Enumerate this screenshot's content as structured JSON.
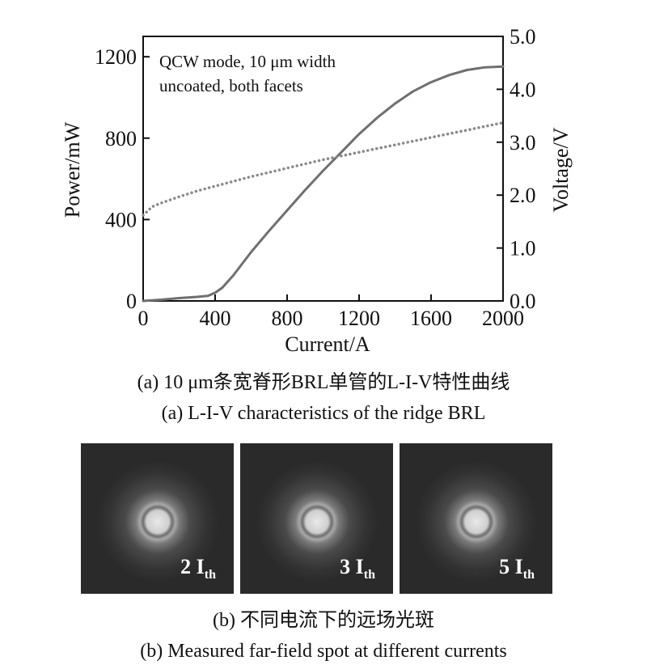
{
  "chart_data": {
    "type": "line",
    "xlabel": "Current/A",
    "ylabel_left": "Power/mW",
    "ylabel_right": "Voltage/V",
    "xlim": [
      0,
      2000
    ],
    "ylim_left": [
      0,
      1300
    ],
    "ylim_right": [
      0,
      5.0
    ],
    "x_ticks": [
      "0",
      "400",
      "800",
      "1200",
      "1600",
      "2000"
    ],
    "y_ticks_left": [
      "0",
      "400",
      "800",
      "1200"
    ],
    "y_ticks_right": [
      "0.0",
      "1.0",
      "2.0",
      "3.0",
      "4.0",
      "5.0"
    ],
    "annotation": [
      "QCW mode, 10 μm width",
      "uncoated, both facets"
    ],
    "series": [
      {
        "axis": "left",
        "style": "solid",
        "color": "#6f6f6f",
        "x": [
          0,
          100,
          200,
          300,
          360,
          400,
          440,
          500,
          600,
          700,
          800,
          900,
          1000,
          1100,
          1200,
          1300,
          1400,
          1500,
          1600,
          1700,
          1800,
          1900,
          2000
        ],
        "values": [
          0,
          6,
          14,
          20,
          25,
          40,
          65,
          125,
          240,
          345,
          445,
          545,
          640,
          730,
          820,
          900,
          970,
          1030,
          1075,
          1110,
          1135,
          1148,
          1152
        ]
      },
      {
        "axis": "right",
        "style": "dotted",
        "color": "#8a8a8a",
        "x": [
          0,
          50,
          100,
          200,
          300,
          400,
          500,
          600,
          700,
          800,
          900,
          1000,
          1100,
          1200,
          1300,
          1400,
          1500,
          1600,
          1700,
          1800,
          1900,
          2000
        ],
        "values": [
          1.62,
          1.78,
          1.85,
          1.97,
          2.08,
          2.17,
          2.26,
          2.35,
          2.43,
          2.51,
          2.59,
          2.67,
          2.74,
          2.81,
          2.88,
          2.95,
          3.02,
          3.09,
          3.16,
          3.23,
          3.3,
          3.37
        ]
      }
    ]
  },
  "captions": {
    "a_cn": "(a) 10 μm条宽脊形BRL单管的L-I-V特性曲线",
    "a_en": "(a) L-I-V characteristics of the ridge BRL",
    "b_cn": "(b) 不同电流下的远场光斑",
    "b_en": "(b) Measured far-field spot at different currents"
  },
  "spots": [
    {
      "num": "2 I",
      "sub": "th"
    },
    {
      "num": "3 I",
      "sub": "th"
    },
    {
      "num": "5 I",
      "sub": "th"
    }
  ]
}
